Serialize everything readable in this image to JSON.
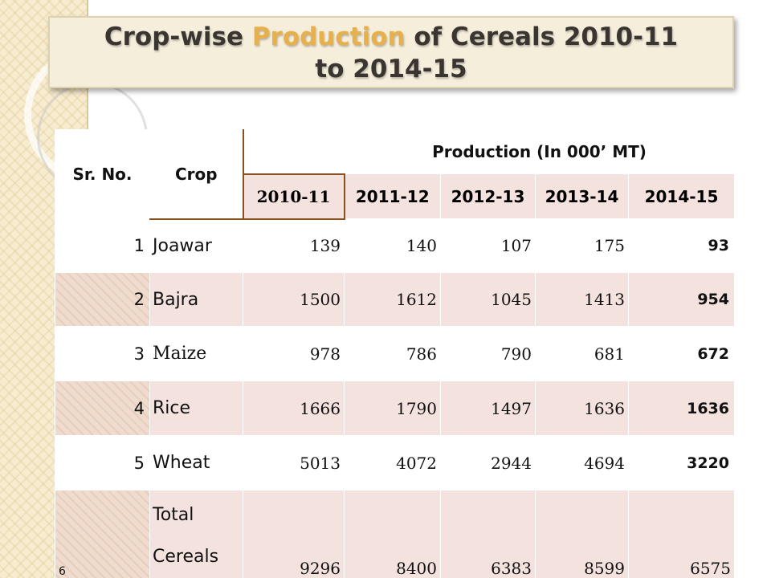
{
  "title": {
    "part1": "Crop-wise ",
    "highlight": "Production",
    "part2": " of Cereals 2010-11",
    "line2": "to 2014-15"
  },
  "table": {
    "headers": {
      "sr_no": "Sr. No.",
      "crop": "Crop",
      "production": "Production (In 000’ MT)"
    },
    "years": [
      "2010-11",
      "2011-12",
      "2012-13",
      "2013-14",
      "2014-15"
    ],
    "rows": [
      {
        "sr": "1",
        "crop": "Joawar",
        "values": [
          "139",
          "140",
          "107",
          "175",
          "93"
        ]
      },
      {
        "sr": "2",
        "crop": "Bajra",
        "values": [
          "1500",
          "1612",
          "1045",
          "1413",
          "954"
        ]
      },
      {
        "sr": "3",
        "crop": "Maize",
        "values": [
          "978",
          "786",
          "790",
          "681",
          "672"
        ]
      },
      {
        "sr": "4",
        "crop": "Rice",
        "values": [
          "1666",
          "1790",
          "1497",
          "1636",
          "1636"
        ]
      },
      {
        "sr": "5",
        "crop": "Wheat",
        "values": [
          "5013",
          "4072",
          "2944",
          "4694",
          "3220"
        ]
      }
    ],
    "total": {
      "sr": "6",
      "crop_line1": "Total",
      "crop_line2": "Cereals",
      "values": [
        "9296",
        "8400",
        "6383",
        "8599",
        "6575"
      ]
    }
  },
  "colors": {
    "title_highlight": "#e7b04b",
    "title_text": "#3a3530",
    "row_shade": "#f3e2dd",
    "title_box": "#f5eedb"
  }
}
